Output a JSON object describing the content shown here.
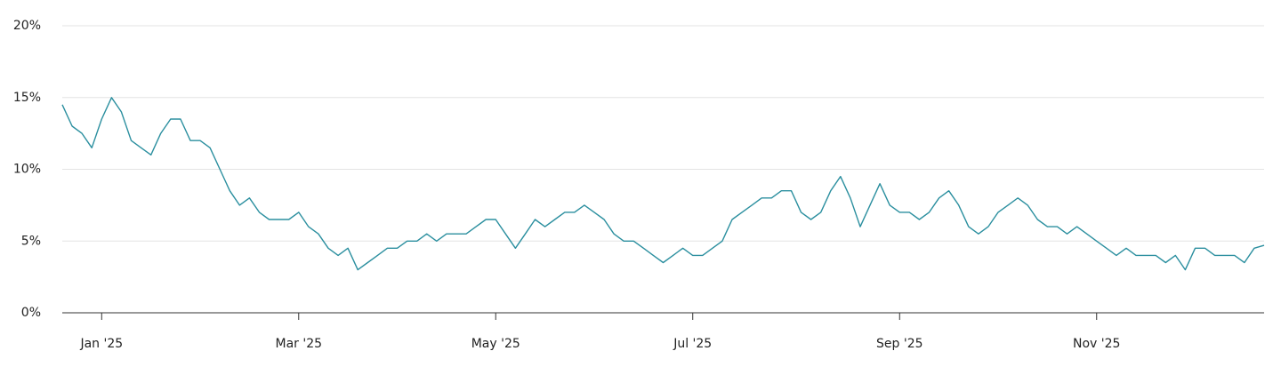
{
  "chart_data": {
    "type": "line",
    "categories": [
      null,
      null,
      null,
      null,
      "Jan '25",
      null,
      null,
      null,
      null,
      null,
      null,
      null,
      null,
      null,
      null,
      null,
      null,
      null,
      null,
      null,
      null,
      null,
      null,
      null,
      "Mar '25",
      null,
      null,
      null,
      null,
      null,
      null,
      null,
      null,
      null,
      null,
      null,
      null,
      null,
      null,
      null,
      null,
      null,
      null,
      null,
      "May '25",
      null,
      null,
      null,
      null,
      null,
      null,
      null,
      null,
      null,
      null,
      null,
      null,
      null,
      null,
      null,
      null,
      null,
      null,
      null,
      "Jul '25",
      null,
      null,
      null,
      null,
      null,
      null,
      null,
      null,
      null,
      null,
      null,
      null,
      null,
      null,
      null,
      null,
      null,
      null,
      null,
      null,
      "Sep '25",
      null,
      null,
      null,
      null,
      null,
      null,
      null,
      null,
      null,
      null,
      null,
      null,
      null,
      null,
      null,
      null,
      null,
      null,
      null,
      "Nov '25",
      null,
      null,
      null,
      null,
      null,
      null,
      null,
      null,
      null,
      null,
      null,
      null,
      null,
      null,
      null,
      null,
      null
    ],
    "values": [
      14.5,
      13,
      12.5,
      11.5,
      13.5,
      15,
      14,
      12,
      11.5,
      11,
      12.5,
      13.5,
      13.5,
      12,
      12,
      11.5,
      10,
      8.5,
      7.5,
      8,
      7,
      6.5,
      6.5,
      6.5,
      7,
      6,
      5.5,
      4.5,
      4,
      4.5,
      3,
      3.5,
      4,
      4.5,
      4.5,
      5,
      5,
      5.5,
      5,
      5.5,
      5.5,
      5.5,
      6,
      6.5,
      6.5,
      5.5,
      4.5,
      5.5,
      6.5,
      6,
      6.5,
      7,
      7,
      7.5,
      7,
      6.5,
      5.5,
      5,
      5,
      4.5,
      4,
      3.5,
      4,
      4.5,
      4,
      4,
      4.5,
      5,
      6.5,
      7,
      7.5,
      8,
      8,
      8.5,
      8.5,
      7,
      6.5,
      7,
      8.5,
      9.5,
      8,
      6,
      7.5,
      9,
      7.5,
      7,
      7,
      6.5,
      7,
      8,
      8.5,
      7.5,
      6,
      5.5,
      6,
      7,
      7.5,
      8,
      7.5,
      6.5,
      6,
      6,
      5.5,
      6,
      5.5,
      5,
      4.5,
      4,
      4.5,
      4,
      4,
      4,
      3.5,
      4,
      3,
      4.5,
      4.5,
      4,
      4,
      4,
      3.5,
      4.5,
      4.7
    ],
    "color": "#2b8f9f",
    "ylim": [
      0,
      20
    ],
    "yticks": [
      {
        "value": 0,
        "label": "0%"
      },
      {
        "value": 5,
        "label": "5%"
      },
      {
        "value": 10,
        "label": "10%"
      },
      {
        "value": 15,
        "label": "15%"
      },
      {
        "value": 20,
        "label": "20%"
      }
    ],
    "grid": true
  }
}
